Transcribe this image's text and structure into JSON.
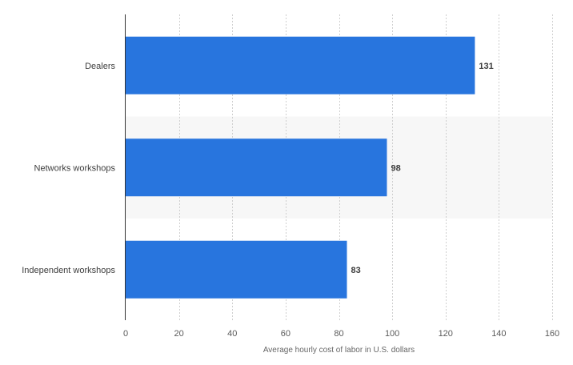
{
  "chart_data": {
    "type": "bar",
    "orientation": "horizontal",
    "categories": [
      "Dealers",
      "Networks workshops",
      "Independent workshops"
    ],
    "values": [
      131,
      98,
      83
    ],
    "xlabel": "Average hourly cost of labor in U.S. dollars",
    "ylabel": "",
    "xlim": [
      0,
      160
    ],
    "xticks": [
      0,
      20,
      40,
      60,
      80,
      100,
      120,
      140,
      160
    ],
    "grid": true,
    "colors": {
      "bar": "#2875de",
      "band": "#f7f7f7",
      "grid": "#cfcfcf"
    }
  }
}
